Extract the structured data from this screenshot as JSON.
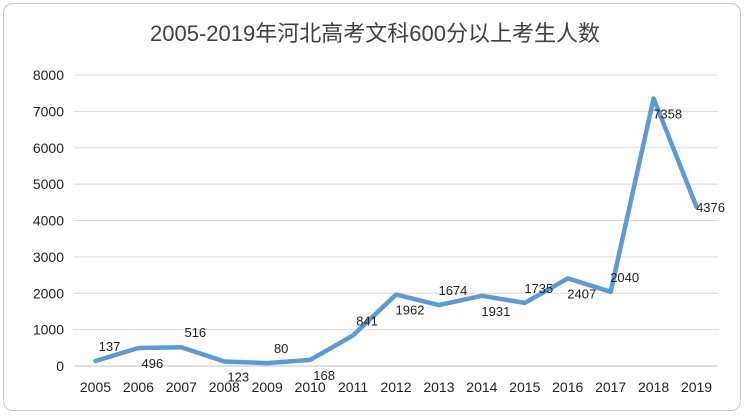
{
  "chart_data": {
    "type": "line",
    "title": "2005-2019年河北高考文科600分以上考生人数",
    "categories": [
      "2005",
      "2006",
      "2007",
      "2008",
      "2009",
      "2010",
      "2011",
      "2012",
      "2013",
      "2014",
      "2015",
      "2016",
      "2017",
      "2018",
      "2019"
    ],
    "series": [
      {
        "values": [
          137,
          496,
          516,
          123,
          80,
          168,
          841,
          1962,
          1674,
          1931,
          1735,
          2407,
          2040,
          7358,
          4376
        ],
        "color": "#5b9bd5"
      }
    ],
    "ylim": [
      0,
      8000
    ],
    "yticks": [
      0,
      1000,
      2000,
      3000,
      4000,
      5000,
      6000,
      7000,
      8000
    ],
    "grid": true,
    "legend": "none"
  }
}
